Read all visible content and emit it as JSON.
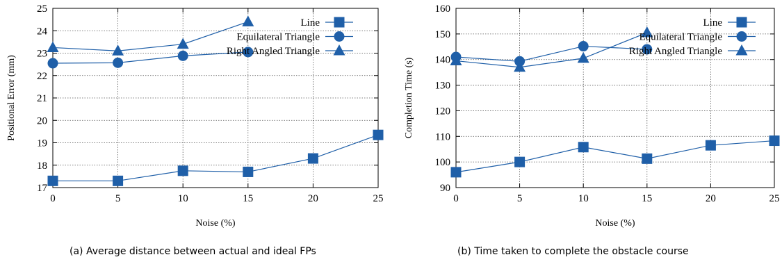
{
  "colors": {
    "series": "#1f5fa8",
    "axis": "#000000",
    "grid": "#555555"
  },
  "charts": [
    {
      "caption": "(a)  Average distance between actual and ideal FPs",
      "chart_data": {
        "type": "line",
        "xlabel": "Noise (%)",
        "ylabel": "Positional Error (mm)",
        "xlim": [
          0,
          25
        ],
        "ylim": [
          17,
          25
        ],
        "xticks": [
          0,
          5,
          10,
          15,
          20,
          25
        ],
        "yticks": [
          17,
          18,
          19,
          20,
          21,
          22,
          23,
          24,
          25
        ],
        "grid": true,
        "legend_position": "top-right",
        "series": [
          {
            "name": "Line",
            "marker": "square",
            "x": [
              0,
              5,
              10,
              15,
              20,
              25
            ],
            "values": [
              17.3,
              17.3,
              17.75,
              17.7,
              18.3,
              19.35
            ]
          },
          {
            "name": "Equilateral Triangle",
            "marker": "circle",
            "x": [
              0,
              5,
              10,
              15
            ],
            "values": [
              22.55,
              22.57,
              22.88,
              23.05
            ]
          },
          {
            "name": "Right Angled Triangle",
            "marker": "triangle",
            "x": [
              0,
              5,
              10,
              15
            ],
            "values": [
              23.25,
              23.1,
              23.4,
              24.4
            ]
          }
        ]
      }
    },
    {
      "caption": "(b)  Time taken to complete the obstacle course",
      "chart_data": {
        "type": "line",
        "xlabel": "Noise (%)",
        "ylabel": "Completion Time (s)",
        "xlim": [
          0,
          25
        ],
        "ylim": [
          90,
          160
        ],
        "xticks": [
          0,
          5,
          10,
          15,
          20,
          25
        ],
        "yticks": [
          90,
          100,
          110,
          120,
          130,
          140,
          150,
          160
        ],
        "grid": true,
        "legend_position": "top-right",
        "series": [
          {
            "name": "Line",
            "marker": "square",
            "x": [
              0,
              5,
              10,
              15,
              20,
              25
            ],
            "values": [
              96,
              100,
              105.8,
              101.3,
              106.5,
              108.3
            ]
          },
          {
            "name": "Equilateral Triangle",
            "marker": "circle",
            "x": [
              0,
              5,
              10,
              15
            ],
            "values": [
              141,
              139.3,
              145.2,
              144
            ]
          },
          {
            "name": "Right Angled Triangle",
            "marker": "triangle",
            "x": [
              0,
              5,
              10,
              15
            ],
            "values": [
              139.5,
              137,
              140.5,
              150.5
            ]
          }
        ]
      }
    }
  ]
}
